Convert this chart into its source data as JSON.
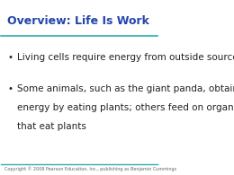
{
  "title": "Overview: Life Is Work",
  "title_color": "#2244aa",
  "title_fontsize": 9,
  "bullet1": "Living cells require energy from outside sources",
  "bullet2_line1": "Some animals, such as the giant panda, obtain",
  "bullet2_line2": "energy by eating plants; others feed on organisms",
  "bullet2_line3": "that eat plants",
  "body_fontsize": 7.5,
  "body_color": "#222222",
  "background_color": "#ffffff",
  "teal_color": "#2ab0b0",
  "copyright_text": "Copyright © 2008 Pearson Education, Inc., publishing as Benjamin Cummings",
  "copyright_fontsize": 3.5
}
